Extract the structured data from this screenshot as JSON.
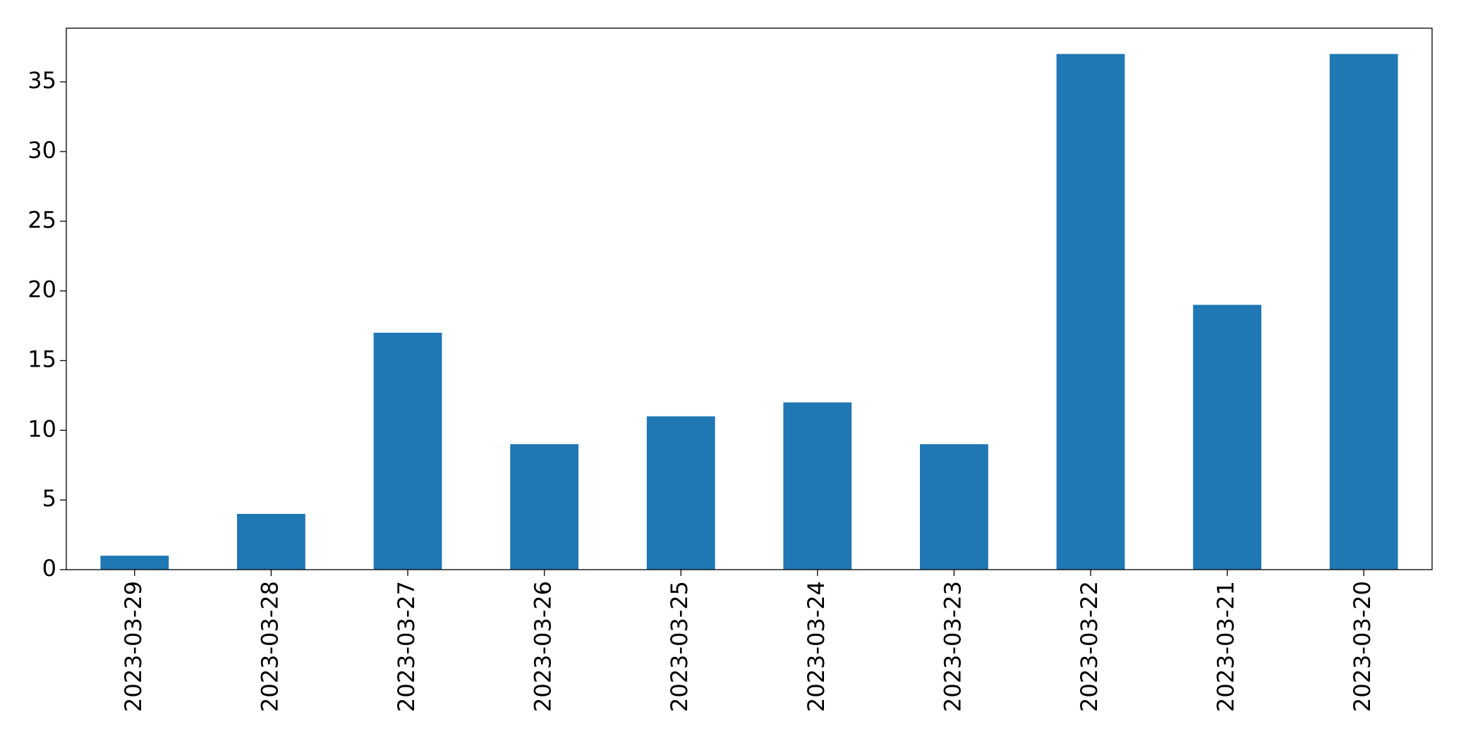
{
  "chart_data": {
    "type": "bar",
    "categories": [
      "2023-03-29",
      "2023-03-28",
      "2023-03-27",
      "2023-03-26",
      "2023-03-25",
      "2023-03-24",
      "2023-03-23",
      "2023-03-22",
      "2023-03-21",
      "2023-03-20"
    ],
    "values": [
      1,
      4,
      17,
      9,
      11,
      12,
      9,
      37,
      19,
      37
    ],
    "color": "#1f77b4",
    "ylim": [
      0,
      38.85
    ],
    "yticks": [
      0,
      5,
      10,
      15,
      20,
      25,
      30,
      35
    ],
    "grid": false
  }
}
